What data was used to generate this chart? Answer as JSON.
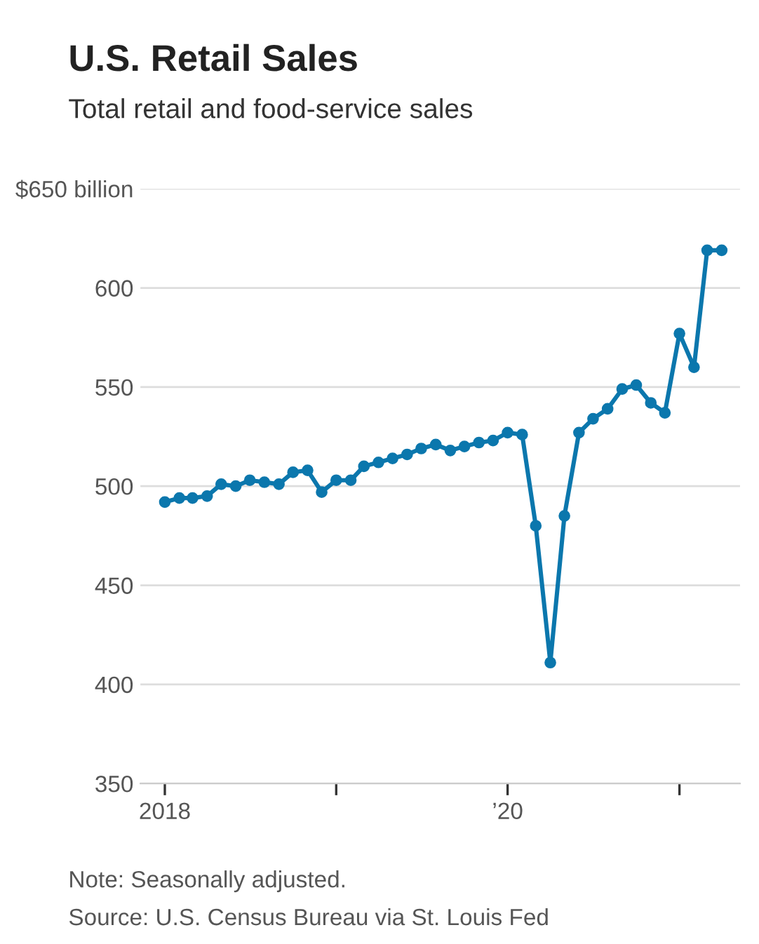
{
  "chart_data": {
    "type": "line",
    "title": "U.S. Retail Sales",
    "subtitle": "Total retail and food-service sales",
    "annotations": [
      "Note: Seasonally adjusted.",
      "Source: U.S. Census Bureau via St. Louis Fed"
    ],
    "x": [
      "2018-01",
      "2018-02",
      "2018-03",
      "2018-04",
      "2018-05",
      "2018-06",
      "2018-07",
      "2018-08",
      "2018-09",
      "2018-10",
      "2018-11",
      "2018-12",
      "2019-01",
      "2019-02",
      "2019-03",
      "2019-04",
      "2019-05",
      "2019-06",
      "2019-07",
      "2019-08",
      "2019-09",
      "2019-10",
      "2019-11",
      "2019-12",
      "2020-01",
      "2020-02",
      "2020-03",
      "2020-04",
      "2020-05",
      "2020-06",
      "2020-07",
      "2020-08",
      "2020-09",
      "2020-10",
      "2020-11",
      "2020-12",
      "2021-01",
      "2021-02",
      "2021-03",
      "2021-04"
    ],
    "series": [
      {
        "color": "#0b77ad",
        "values": [
          492,
          494,
          494,
          495,
          501,
          500,
          503,
          502,
          501,
          507,
          508,
          497,
          503,
          503,
          510,
          512,
          514,
          516,
          519,
          521,
          518,
          520,
          522,
          523,
          527,
          526,
          480,
          411,
          485,
          527,
          534,
          539,
          549,
          551,
          542,
          537,
          577,
          560,
          619,
          619
        ]
      }
    ],
    "xlim": [
      "2017-11-10",
      "2021-05-10"
    ],
    "xticks": [
      {
        "value": "2018-01",
        "label": "2018"
      },
      {
        "value": "2019-01",
        "label": null
      },
      {
        "value": "2020-01",
        "label": "’20"
      },
      {
        "value": "2021-01",
        "label": null
      }
    ],
    "ylim": [
      350,
      650
    ],
    "yticks": [
      350,
      400,
      450,
      500,
      550,
      600,
      {
        "value": 650,
        "label": "$650 billion"
      }
    ],
    "grid": "y",
    "marker": "circle",
    "line_style": "solid"
  }
}
